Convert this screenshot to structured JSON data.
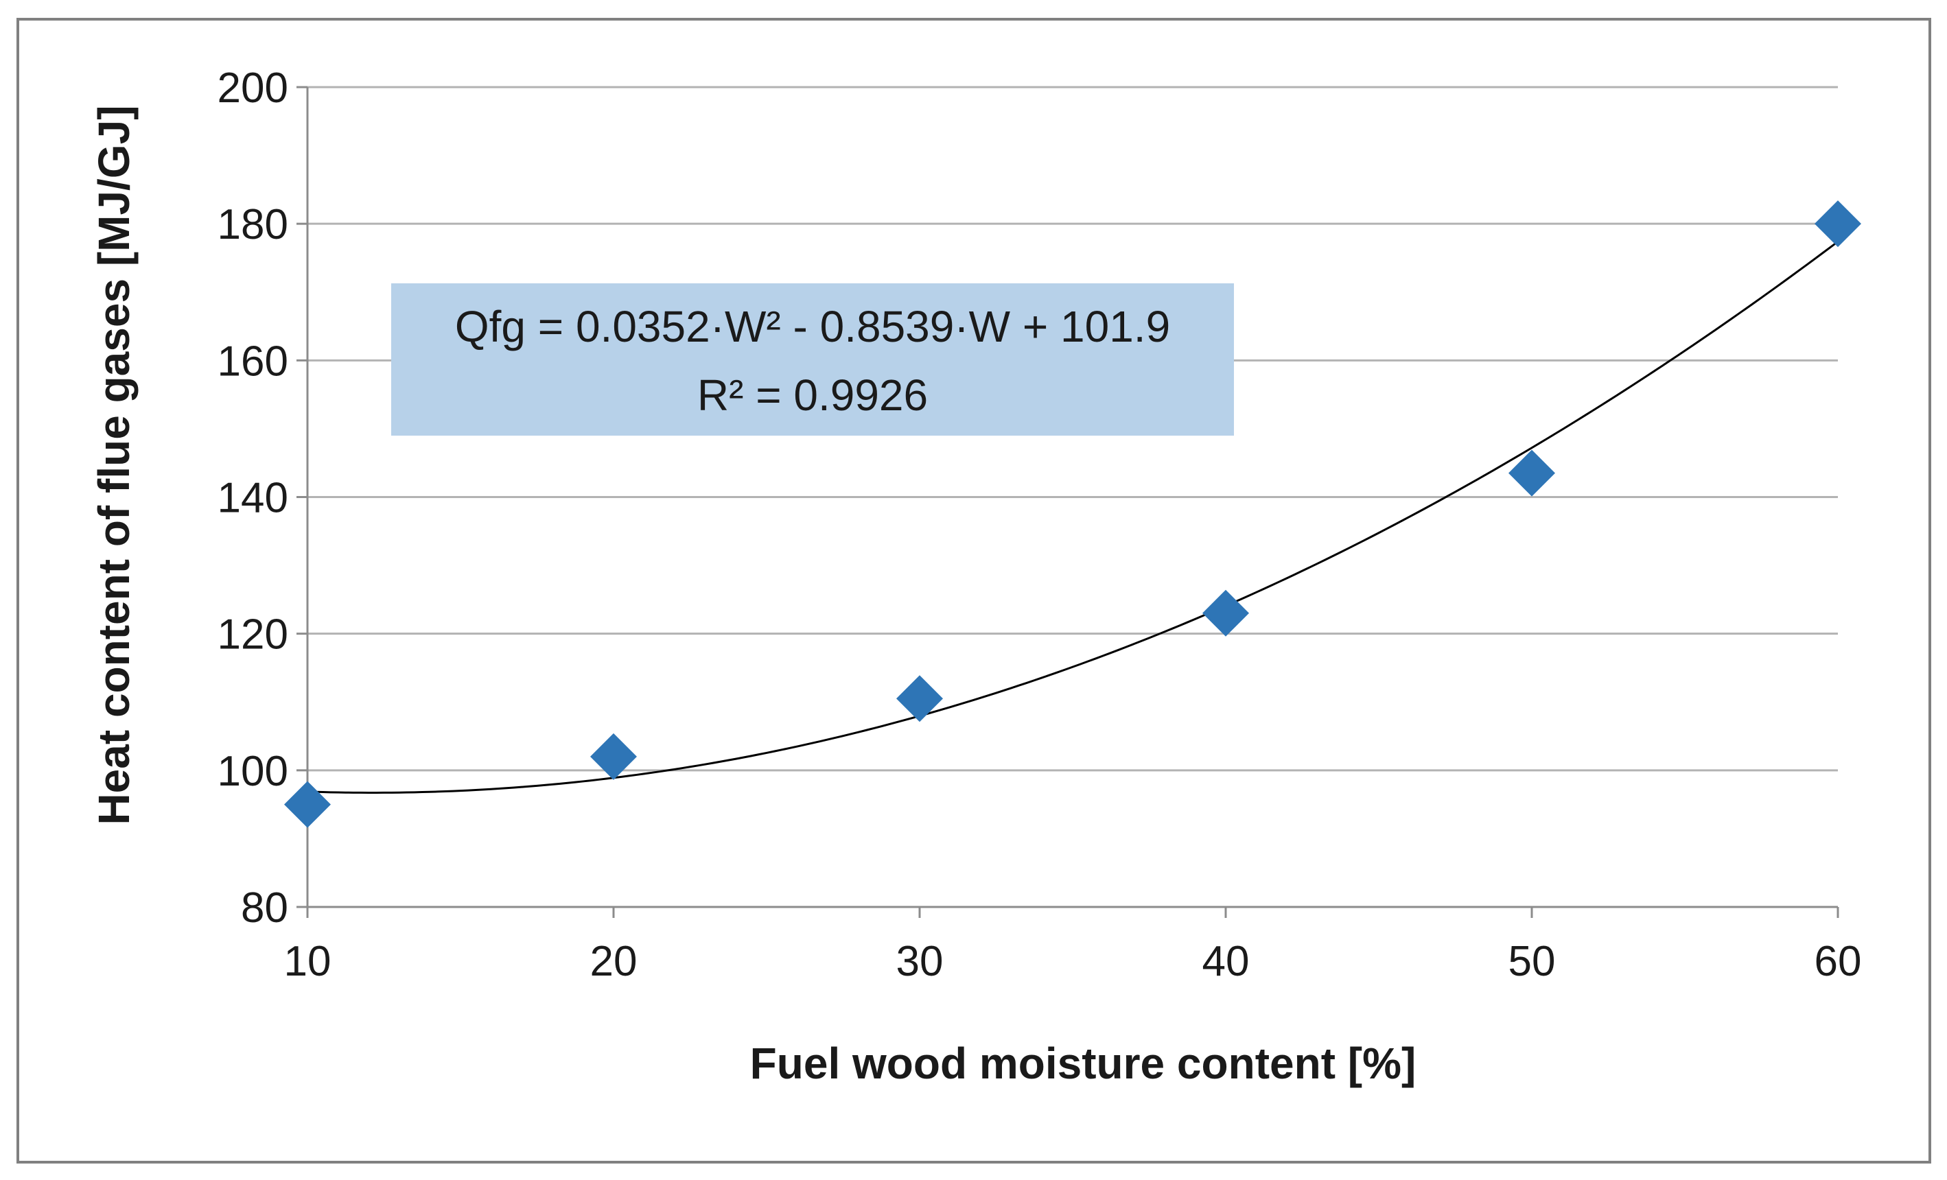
{
  "chart_data": {
    "type": "scatter",
    "title": "",
    "xlabel": "Fuel wood moisture content [%]",
    "ylabel": "Heat content of flue gases [MJ/GJ]",
    "xlim": [
      10,
      60
    ],
    "ylim": [
      80,
      200
    ],
    "x_ticks": [
      10,
      20,
      30,
      40,
      50,
      60
    ],
    "y_ticks": [
      80,
      100,
      120,
      140,
      160,
      180,
      200
    ],
    "x_tick_labels": [
      "10",
      "20",
      "30",
      "40",
      "50",
      "60"
    ],
    "y_tick_labels": [
      "80",
      "100",
      "120",
      "140",
      "160",
      "180",
      "200"
    ],
    "grid": "horizontal",
    "series": [
      {
        "marker": "diamond",
        "color": "#2E75B6",
        "x": [
          10,
          20,
          30,
          40,
          50,
          60
        ],
        "y": [
          95,
          102,
          110.5,
          123,
          143.5,
          180
        ]
      }
    ],
    "trendline": {
      "type": "polynomial",
      "coefficients": [
        0.0352,
        -0.8539,
        101.9
      ],
      "color": "#000000"
    },
    "annotation": {
      "equation": "Qfg = 0.0352·W² - 0.8539·W + 101.9",
      "r_squared": "R² = 0.9926",
      "background": "#B7D1E9"
    },
    "border_color": "#808080",
    "gridline_color": "#B3B3B3"
  }
}
